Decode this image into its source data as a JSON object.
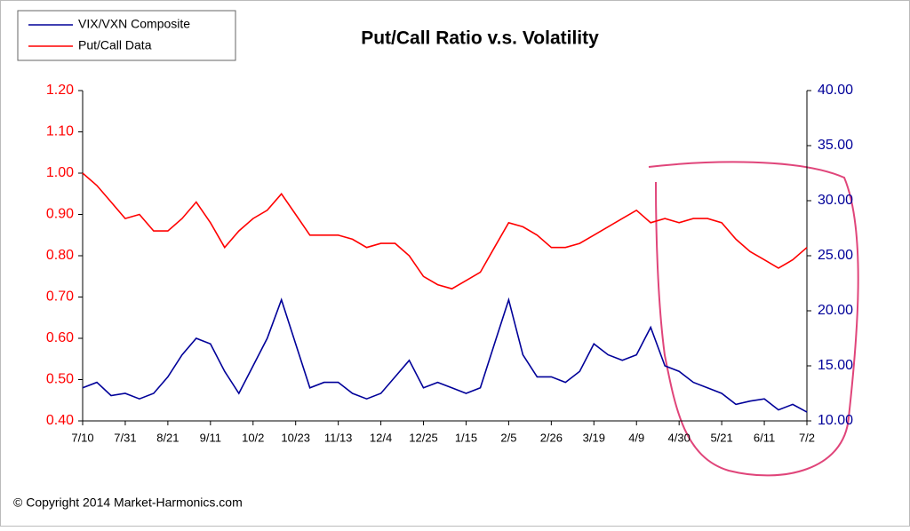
{
  "chart_data": {
    "type": "line",
    "title": "Put/Call Ratio v.s. Volatility",
    "footer": "© Copyright 2014 Market-Harmonics.com",
    "legend": "top-left",
    "categories": [
      "7/10",
      null,
      null,
      "7/31",
      null,
      null,
      "8/21",
      null,
      null,
      "9/11",
      null,
      null,
      "10/2",
      null,
      null,
      "10/23",
      null,
      null,
      "11/13",
      null,
      null,
      "12/4",
      null,
      null,
      "12/25",
      null,
      null,
      "1/15",
      null,
      null,
      "2/5",
      null,
      null,
      "2/26",
      null,
      null,
      "3/19",
      null,
      null,
      "4/9",
      null,
      null,
      "4/30",
      null,
      null,
      "5/21",
      null,
      null,
      "6/11",
      null,
      null,
      "7/2"
    ],
    "ylim": [
      0.4,
      1.2
    ],
    "yticks": [
      {
        "value": 0.4,
        "label": "0.40"
      },
      {
        "value": 0.5,
        "label": "0.50"
      },
      {
        "value": 0.6,
        "label": "0.60"
      },
      {
        "value": 0.7,
        "label": "0.70"
      },
      {
        "value": 0.8,
        "label": "0.80"
      },
      {
        "value": 0.9,
        "label": "0.90"
      },
      {
        "value": 1.0,
        "label": "1.00"
      },
      {
        "value": 1.1,
        "label": "1.10"
      },
      {
        "value": 1.2,
        "label": "1.20"
      }
    ],
    "y2lim": [
      10,
      40
    ],
    "y2ticks": [
      {
        "value": 10,
        "label": "10.00"
      },
      {
        "value": 15,
        "label": "15.00"
      },
      {
        "value": 20,
        "label": "20.00"
      },
      {
        "value": 25,
        "label": "25.00"
      },
      {
        "value": 30,
        "label": "30.00"
      },
      {
        "value": 35,
        "label": "35.00"
      },
      {
        "value": 40,
        "label": "40.00"
      }
    ],
    "yaxis_color": "#ff0000",
    "y2axis_color": "#000099",
    "series": [
      {
        "name": "VIX/VXN Composite",
        "color": "#000099",
        "axis": "y2",
        "values": [
          13,
          13.5,
          12.3,
          12.5,
          12,
          12.5,
          14,
          16,
          17.5,
          17,
          14.5,
          12.5,
          15,
          17.5,
          21,
          17,
          13,
          13.5,
          13.5,
          12.5,
          12,
          12.5,
          14,
          15.5,
          13,
          13.5,
          13,
          12.5,
          13,
          17,
          21,
          16,
          14,
          14,
          13.5,
          14.5,
          17,
          16,
          15.5,
          16,
          18.5,
          15,
          14.5,
          13.5,
          13,
          12.5,
          11.5,
          11.8,
          12,
          11,
          11.5,
          10.8
        ]
      },
      {
        "name": "Put/Call Data",
        "color": "#ff0000",
        "axis": "y",
        "values": [
          1.0,
          0.97,
          0.93,
          0.89,
          0.9,
          0.86,
          0.86,
          0.89,
          0.93,
          0.88,
          0.82,
          0.86,
          0.89,
          0.91,
          0.95,
          0.9,
          0.85,
          0.85,
          0.85,
          0.84,
          0.82,
          0.83,
          0.83,
          0.8,
          0.75,
          0.73,
          0.72,
          0.74,
          0.76,
          0.82,
          0.88,
          0.87,
          0.85,
          0.82,
          0.82,
          0.83,
          0.85,
          0.87,
          0.89,
          0.91,
          0.88,
          0.89,
          0.88,
          0.89,
          0.89,
          0.88,
          0.84,
          0.81,
          0.79,
          0.77,
          0.79,
          0.82
        ]
      }
    ]
  }
}
